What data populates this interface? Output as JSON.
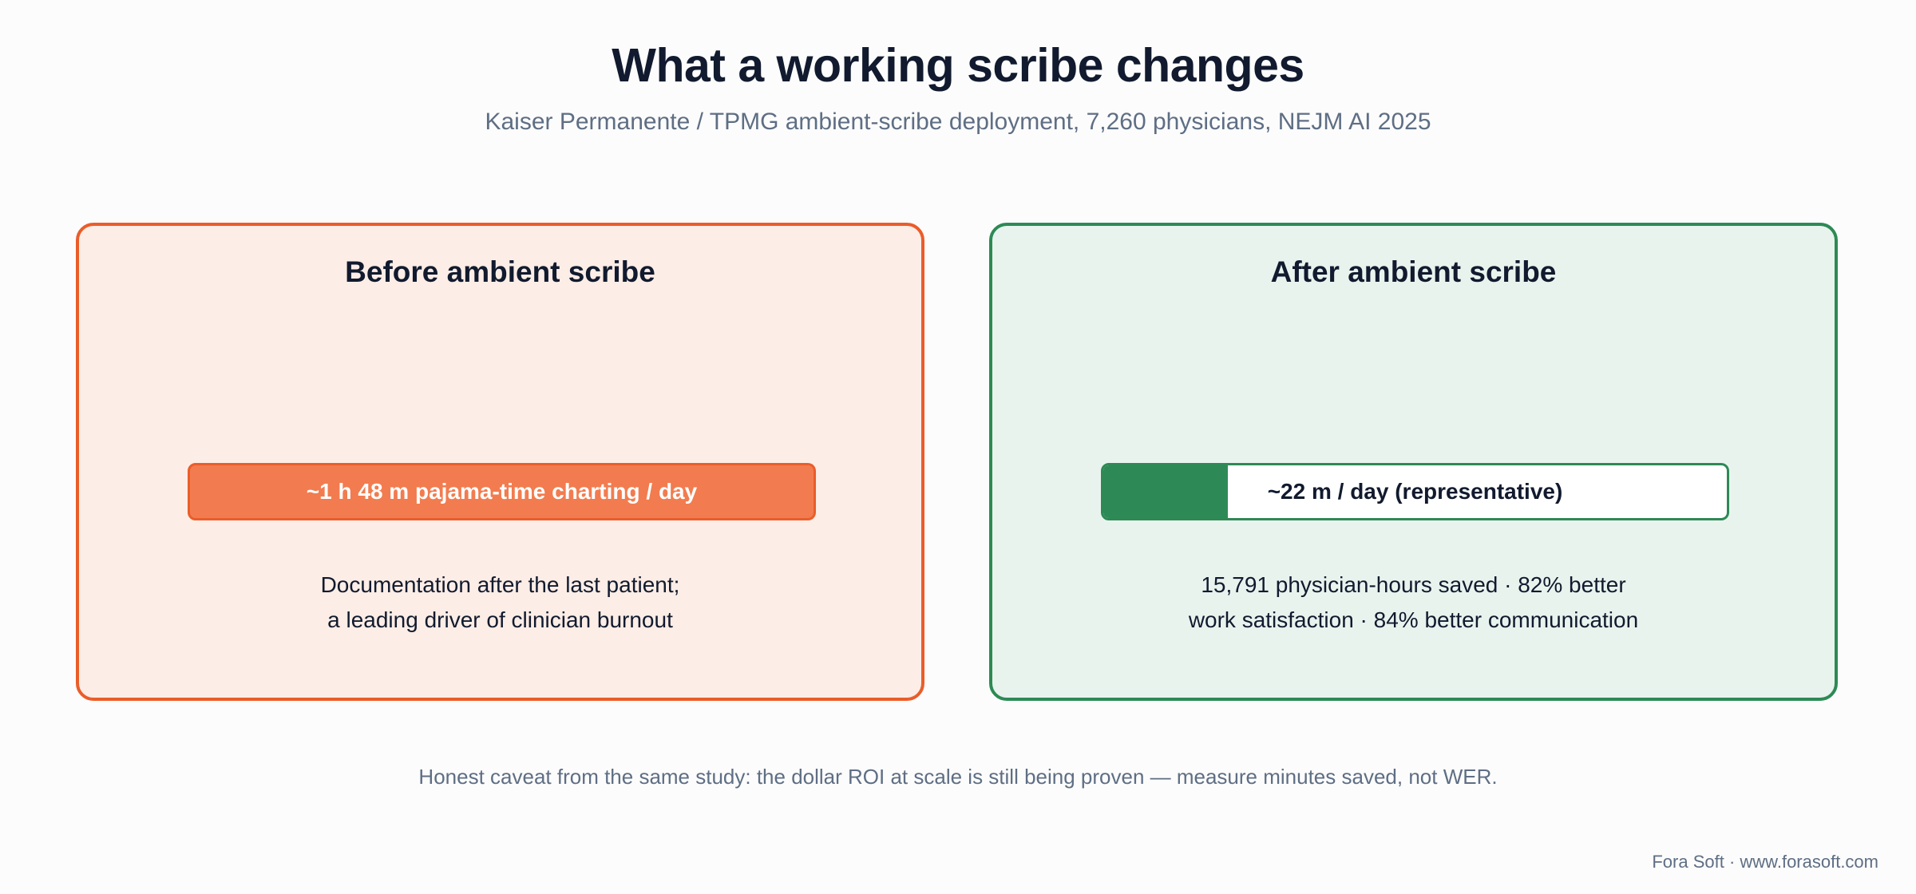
{
  "header": {
    "title": "What a working scribe changes",
    "subtitle": "Kaiser Permanente / TPMG ambient-scribe deployment, 7,260 physicians, NEJM AI 2025"
  },
  "before": {
    "title": "Before ambient scribe",
    "bar_label": "~1 h 48 m pajama-time charting / day",
    "desc_line1": "Documentation after the last patient;",
    "desc_line2": "a leading driver of clinician burnout",
    "color": "#ea5d2a"
  },
  "after": {
    "title": "After ambient scribe",
    "bar_label": "~22 m / day (representative)",
    "bar_fill_fraction": 0.2,
    "desc_line1": "15,791 physician-hours saved · 82% better",
    "desc_line2": "work satisfaction · 84% better communication",
    "color": "#2d8a55"
  },
  "caveat": "Honest caveat from the same study: the dollar ROI at scale is still being proven — measure minutes saved, not WER.",
  "footer": "Fora Soft · www.forasoft.com"
}
